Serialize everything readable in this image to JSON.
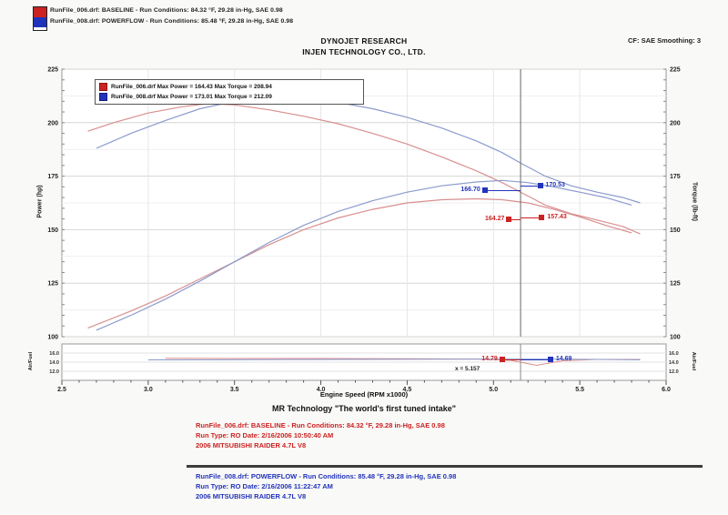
{
  "header": {
    "legend_rows": [
      {
        "color": "#cc2222",
        "text": "RunFile_006.drf: BASELINE  -  Run Conditions: 84.32 °F, 29.28 in-Hg, SAE 0.98"
      },
      {
        "color": "#2233bb",
        "text": "RunFile_008.drf: POWERFLOW  -  Run Conditions: 85.48 °F, 29.28 in-Hg, SAE 0.98"
      }
    ],
    "title1": "DYNOJET RESEARCH",
    "title2": "INJEN TECHNOLOGY CO., LTD.",
    "correction": "CF: SAE   Smoothing: 3"
  },
  "chart_data": {
    "type": "line",
    "title": "DYNOJET RESEARCH",
    "subtitle": "INJEN TECHNOLOGY CO., LTD.",
    "xlabel": "Engine Speed (RPM x1000)",
    "ylabel_left": "Power (hp)",
    "ylabel_right": "Torque (lb-ft)",
    "xlim": [
      2.5,
      6.0
    ],
    "ylim": [
      100,
      225
    ],
    "x_ticks": [
      2.5,
      3.0,
      3.5,
      4.0,
      4.5,
      5.0,
      5.5,
      6.0
    ],
    "y_ticks": [
      100,
      125,
      150,
      175,
      200,
      225
    ],
    "grid": true,
    "cursor_x": 5.157,
    "legend_position": "top-left",
    "legend": [
      {
        "color": "#cc2222",
        "label": "RunFile_006.drf Max Power = 164.43    Max Torque = 208.94"
      },
      {
        "color": "#2233bb",
        "label": "RunFile_008.drf Max Power = 173.01    Max Torque = 212.09"
      }
    ],
    "series": [
      {
        "name": "BASELINE Torque",
        "color": "#d98f8f",
        "points": [
          [
            2.65,
            196
          ],
          [
            2.8,
            200
          ],
          [
            3.0,
            204.5
          ],
          [
            3.2,
            207.5
          ],
          [
            3.35,
            208.9
          ],
          [
            3.5,
            208.3
          ],
          [
            3.7,
            206
          ],
          [
            3.9,
            203
          ],
          [
            4.1,
            199.5
          ],
          [
            4.3,
            195
          ],
          [
            4.5,
            190
          ],
          [
            4.7,
            184
          ],
          [
            4.9,
            177.5
          ],
          [
            5.05,
            172
          ],
          [
            5.16,
            167.4
          ],
          [
            5.3,
            161.5
          ],
          [
            5.45,
            157.5
          ],
          [
            5.6,
            154.5
          ],
          [
            5.75,
            151.5
          ],
          [
            5.85,
            148
          ]
        ]
      },
      {
        "name": "POWERFLOW Torque",
        "color": "#8b9bcc",
        "points": [
          [
            2.7,
            188
          ],
          [
            2.9,
            195
          ],
          [
            3.1,
            201
          ],
          [
            3.3,
            206.5
          ],
          [
            3.5,
            210
          ],
          [
            3.7,
            212.1
          ],
          [
            3.9,
            211.5
          ],
          [
            4.1,
            209.5
          ],
          [
            4.3,
            206.5
          ],
          [
            4.5,
            202.5
          ],
          [
            4.7,
            197.5
          ],
          [
            4.9,
            191.5
          ],
          [
            5.05,
            186
          ],
          [
            5.16,
            181
          ],
          [
            5.3,
            175
          ],
          [
            5.45,
            170.5
          ],
          [
            5.6,
            167.5
          ],
          [
            5.75,
            165
          ],
          [
            5.85,
            162.5
          ]
        ]
      },
      {
        "name": "BASELINE Power",
        "color": "#d98f8f",
        "points": [
          [
            2.65,
            104
          ],
          [
            2.9,
            112
          ],
          [
            3.1,
            119
          ],
          [
            3.3,
            127
          ],
          [
            3.5,
            135
          ],
          [
            3.7,
            143
          ],
          [
            3.9,
            150
          ],
          [
            4.1,
            155.5
          ],
          [
            4.3,
            159.5
          ],
          [
            4.5,
            162.5
          ],
          [
            4.7,
            164
          ],
          [
            4.9,
            164.4
          ],
          [
            5.05,
            164
          ],
          [
            5.2,
            162.5
          ],
          [
            5.35,
            159.5
          ],
          [
            5.5,
            156
          ],
          [
            5.65,
            152
          ],
          [
            5.8,
            148.5
          ]
        ]
      },
      {
        "name": "POWERFLOW Power",
        "color": "#8b9bcc",
        "points": [
          [
            2.7,
            103
          ],
          [
            2.9,
            110
          ],
          [
            3.1,
            117.5
          ],
          [
            3.3,
            126
          ],
          [
            3.5,
            135
          ],
          [
            3.7,
            144
          ],
          [
            3.9,
            152
          ],
          [
            4.1,
            158.5
          ],
          [
            4.3,
            163.5
          ],
          [
            4.5,
            167.5
          ],
          [
            4.7,
            170.5
          ],
          [
            4.9,
            172.3
          ],
          [
            5.05,
            173
          ],
          [
            5.2,
            172
          ],
          [
            5.35,
            170
          ],
          [
            5.5,
            167.5
          ],
          [
            5.65,
            165
          ],
          [
            5.8,
            161.5
          ]
        ]
      }
    ],
    "callouts": [
      {
        "label": "166.70",
        "color": "#2233bb",
        "marker_x": 4.95,
        "value": 168.5,
        "side": "left"
      },
      {
        "label": "170.53",
        "color": "#2233bb",
        "marker_x": 5.27,
        "value": 170.5,
        "side": "right"
      },
      {
        "label": "164.27",
        "color": "#cc2222",
        "marker_x": 5.09,
        "value": 155.0,
        "side": "left"
      },
      {
        "label": "157.43",
        "color": "#cc2222",
        "marker_x": 5.28,
        "value": 155.5,
        "side": "right"
      }
    ],
    "af_panel": {
      "ylabel_left": "Air/Fuel",
      "ylabel_right": "Air/Fuel",
      "ylim": [
        10,
        18
      ],
      "y_ticks": [
        12.0,
        14.0,
        16.0
      ],
      "series": [
        {
          "name": "BASELINE Air/Fuel",
          "color": "#d98f8f",
          "points": [
            [
              3.1,
              14.85
            ],
            [
              3.5,
              14.8
            ],
            [
              4.0,
              14.8
            ],
            [
              4.5,
              14.75
            ],
            [
              4.9,
              14.7
            ],
            [
              5.1,
              14.4
            ],
            [
              5.25,
              13.3
            ],
            [
              5.4,
              14.3
            ],
            [
              5.6,
              14.6
            ],
            [
              5.85,
              14.6
            ]
          ]
        },
        {
          "name": "POWERFLOW Air/Fuel",
          "color": "#8b9bcc",
          "points": [
            [
              3.0,
              14.5
            ],
            [
              3.6,
              14.55
            ],
            [
              4.2,
              14.6
            ],
            [
              4.8,
              14.65
            ],
            [
              5.1,
              14.68
            ],
            [
              5.33,
              14.69
            ],
            [
              5.6,
              14.6
            ],
            [
              5.85,
              14.5
            ]
          ]
        }
      ],
      "callouts": [
        {
          "label": "14.79",
          "color": "#cc2222",
          "marker_x": 5.05,
          "value": 14.7,
          "side": "left"
        },
        {
          "label": "14.69",
          "color": "#2233bb",
          "marker_x": 5.33,
          "value": 14.7,
          "side": "right"
        }
      ],
      "cursor_label": "x = 5.157"
    }
  },
  "footer": {
    "tagline": "MR Technology \"The world's first tuned intake\"",
    "baseline_block": {
      "color": "#cc2222",
      "lines": [
        "RunFile_006.drf: BASELINE  -  Run Conditions: 84.32 °F, 29.28 in-Hg, SAE 0.98",
        "Run Type: RO  Date: 2/16/2006 10:50:40 AM",
        "2006 MITSUBISHI RAIDER 4.7L V8"
      ]
    },
    "powerflow_block": {
      "color": "#2233bb",
      "lines": [
        "RunFile_008.drf: POWERFLOW  -  Run Conditions: 85.48 °F, 29.28 in-Hg, SAE 0.98",
        "Run Type: RO  Date: 2/16/2006 11:22:47 AM",
        "2006 MITSUBISHI RAIDER 4.7L V8"
      ]
    }
  }
}
